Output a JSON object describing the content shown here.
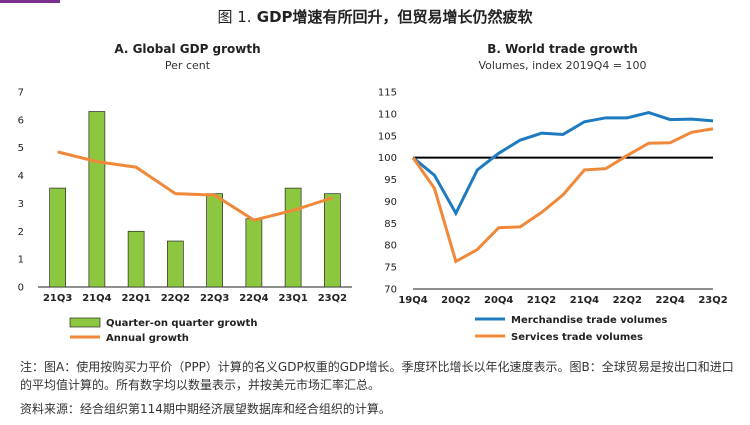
{
  "figure": {
    "label": "图 1.",
    "title": "GDP增速有所回升，但贸易增长仍然疲软"
  },
  "notes": "注：图A：使用按购买力平价（PPP）计算的名义GDP权重的GDP增长。季度环比增长以年化速度表示。图B：全球贸易是按出口和进口的平均值计算的。所有数字均以数量表示，并按美元市场汇率汇总。",
  "source": "资料来源：经合组织第114期中期经济展望数据库和经合组织的计算。",
  "chart_data": [
    {
      "type": "bar",
      "title": "A. Global GDP growth",
      "subtitle": "Per cent",
      "categories": [
        "21Q3",
        "21Q4",
        "22Q1",
        "22Q2",
        "22Q3",
        "22Q4",
        "23Q1",
        "23Q2"
      ],
      "ylim": [
        0,
        7
      ],
      "yticks": [
        0,
        1,
        2,
        3,
        4,
        5,
        6,
        7
      ],
      "grid": false,
      "legend": "bottom",
      "series": [
        {
          "name": "Quarter-on quarter growth",
          "kind": "bar",
          "color": "#8dc63f",
          "values": [
            3.55,
            6.3,
            2.0,
            1.65,
            3.35,
            2.45,
            3.55,
            3.35
          ]
        },
        {
          "name": "Annual growth",
          "kind": "line",
          "color": "#f0883a",
          "values": [
            4.85,
            4.5,
            4.3,
            3.35,
            3.3,
            2.4,
            2.75,
            3.2
          ]
        }
      ]
    },
    {
      "type": "line",
      "title": "B. World trade growth",
      "subtitle": "Volumes, index 2019Q4 = 100",
      "x": [
        "19Q4",
        "20Q1",
        "20Q2",
        "20Q3",
        "20Q4",
        "21Q1",
        "21Q2",
        "21Q3",
        "21Q4",
        "22Q1",
        "22Q2",
        "22Q3",
        "22Q4",
        "23Q1",
        "23Q2"
      ],
      "xticklabels": [
        "19Q4",
        "20Q2",
        "20Q4",
        "21Q2",
        "21Q4",
        "22Q2",
        "22Q4",
        "23Q2"
      ],
      "ylim": [
        70,
        115
      ],
      "yticks": [
        70,
        75,
        80,
        85,
        90,
        95,
        100,
        105,
        110,
        115
      ],
      "grid": false,
      "legend": "bottom",
      "reference_line": 100,
      "series": [
        {
          "name": "Merchandise trade volumes",
          "color": "#1f7bbf",
          "values": [
            100,
            96,
            87.3,
            97.2,
            101,
            104,
            105.6,
            105.3,
            108.2,
            109.1,
            109.1,
            110.3,
            108.7,
            108.8,
            108.4
          ]
        },
        {
          "name": "Services trade volumes",
          "color": "#f0883a",
          "values": [
            100,
            93,
            76.3,
            79,
            84,
            84.2,
            87.5,
            91.5,
            97.2,
            97.5,
            100.5,
            103.3,
            103.4,
            105.8,
            106.6
          ]
        }
      ]
    }
  ]
}
